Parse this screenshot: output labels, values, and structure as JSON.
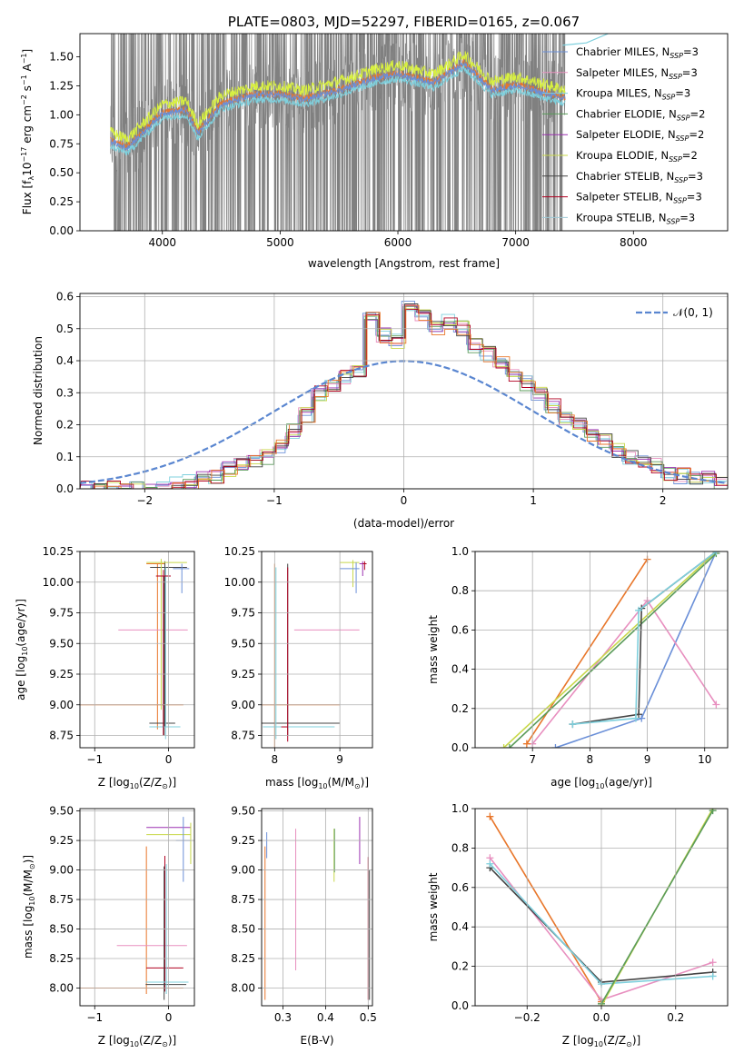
{
  "colors": {
    "Chabrier MILES": "#6a8fd8",
    "Salpeter MILES": "#e88fbf",
    "Kroupa MILES": "#7fd0dd",
    "Chabrier ELODIE": "#5a9b5a",
    "Salpeter ELODIE": "#9b30b0",
    "Kroupa ELODIE": "#c8d84a",
    "Chabrier STELIB": "#444444",
    "Salpeter STELIB": "#b00020",
    "Kroupa STELIB": "#9ec9d6",
    "data": "#808080",
    "models_orange": "#e8762a",
    "models_yellow": "#d8f040",
    "normal": "#5a86d0"
  },
  "chart_data": [
    {
      "id": "spectrum",
      "type": "line",
      "title": "PLATE=0803, MJD=52297, FIBERID=0165, z=0.067",
      "xlabel": "wavelength [Angstrom, rest frame]",
      "ylabel_main": "Flux [f",
      "ylabel_sub": "λ",
      "ylabel_rest": "10",
      "ylabel_sup": "−17",
      "ylabel_end": " erg cm",
      "ylabel_sup2": "−2",
      "ylabel_mid": " s",
      "ylabel_sup3": "−1",
      "ylabel_tail": " A",
      "ylabel_sup4": "−1",
      "ylabel_close": "]",
      "xlim": [
        3300,
        8800
      ],
      "ylim": [
        0,
        1.7
      ],
      "xticks": [
        4000,
        5000,
        6000,
        7000,
        8000
      ],
      "yticks": [
        0.0,
        0.25,
        0.5,
        0.75,
        1.0,
        1.25,
        1.5
      ],
      "ytick_labels": [
        "0.00",
        "0.25",
        "0.50",
        "0.75",
        "1.00",
        "1.25",
        "1.50"
      ],
      "data_range": [
        3560,
        7420
      ],
      "model_trend": [
        [
          3560,
          0.78
        ],
        [
          3700,
          0.72
        ],
        [
          3900,
          0.92
        ],
        [
          4000,
          1.02
        ],
        [
          4200,
          1.05
        ],
        [
          4300,
          0.85
        ],
        [
          4500,
          1.1
        ],
        [
          4800,
          1.18
        ],
        [
          5000,
          1.18
        ],
        [
          5200,
          1.14
        ],
        [
          5500,
          1.22
        ],
        [
          5800,
          1.32
        ],
        [
          6000,
          1.36
        ],
        [
          6300,
          1.28
        ],
        [
          6560,
          1.45
        ],
        [
          6800,
          1.22
        ],
        [
          7000,
          1.26
        ],
        [
          7400,
          1.15
        ]
      ],
      "legend": [
        {
          "name": "Chabrier MILES",
          "nssp": "3"
        },
        {
          "name": "Salpeter MILES",
          "nssp": "3"
        },
        {
          "name": "Kroupa MILES",
          "nssp": "3"
        },
        {
          "name": "Chabrier ELODIE",
          "nssp": "2"
        },
        {
          "name": "Salpeter ELODIE",
          "nssp": "2"
        },
        {
          "name": "Kroupa ELODIE",
          "nssp": "2"
        },
        {
          "name": "Chabrier STELIB",
          "nssp": "3"
        },
        {
          "name": "Salpeter STELIB",
          "nssp": "3"
        },
        {
          "name": "Kroupa STELIB",
          "nssp": "3"
        }
      ],
      "legend_suffix_pre": ", N",
      "legend_suffix_sub": "SSP",
      "legend_suffix_eq": "=",
      "legend_placement": "right"
    },
    {
      "id": "residuals",
      "type": "line",
      "xlabel": "(data-model)/error",
      "ylabel": "Normed distribution",
      "xlim": [
        -2.5,
        2.5
      ],
      "ylim": [
        0,
        0.61
      ],
      "xticks": [
        -2,
        -1,
        0,
        1,
        2
      ],
      "xtick_labels": [
        "−2",
        "−1",
        "0",
        "1",
        "2"
      ],
      "yticks": [
        0.0,
        0.1,
        0.2,
        0.3,
        0.4,
        0.5,
        0.6
      ],
      "ytick_labels": [
        "0.0",
        "0.1",
        "0.2",
        "0.3",
        "0.4",
        "0.5",
        "0.6"
      ],
      "grid": true,
      "legend_label": "𝒩(0, 1)",
      "legend_placement": "top-right",
      "hist_bins_start": -2.5,
      "hist_bin_width": 0.1,
      "hist_base": [
        0,
        0,
        0,
        0,
        0,
        0,
        0.01,
        0.02,
        0.02,
        0.03,
        0.04,
        0.06,
        0.07,
        0.08,
        0.1,
        0.13,
        0.18,
        0.23,
        0.3,
        0.32,
        0.35,
        0.36,
        0.54,
        0.48,
        0.46,
        0.57,
        0.54,
        0.5,
        0.52,
        0.5,
        0.45,
        0.42,
        0.39,
        0.35,
        0.33,
        0.3,
        0.26,
        0.22,
        0.2,
        0.17,
        0.15,
        0.12,
        0.1,
        0.08,
        0.07,
        0.05,
        0.04,
        0.03,
        0.03,
        0.02
      ]
    },
    {
      "id": "age-vs-Z",
      "type": "scatter",
      "xlabel_main": "Z [log",
      "xlabel_sub": "10",
      "xlabel_end": "(Z/Z",
      "xlabel_sub2": "⊙",
      "xlabel_close": ")]",
      "ylabel_main": "age  [log",
      "ylabel_sub": "10",
      "ylabel_end": "(age/yr)]",
      "xlim": [
        -1.2,
        0.35
      ],
      "ylim": [
        8.65,
        10.25
      ],
      "xticks": [
        -1,
        0
      ],
      "xtick_labels": [
        "−1",
        "0"
      ],
      "yticks": [
        8.75,
        9.0,
        9.25,
        9.5,
        9.75,
        10.0,
        10.25
      ],
      "ytick_labels": [
        "8.75",
        "9.00",
        "9.25",
        "9.50",
        "9.75",
        "10.00",
        "10.25"
      ]
    },
    {
      "id": "age-vs-mass",
      "type": "scatter",
      "xlabel_main": "mass [log",
      "xlabel_sub": "10",
      "xlabel_end": "(M/M",
      "xlabel_sub2": "⊙",
      "xlabel_close": ")]",
      "xlim": [
        7.8,
        9.5
      ],
      "ylim": [
        8.65,
        10.25
      ],
      "xticks": [
        8,
        9
      ],
      "xtick_labels": [
        "8",
        "9"
      ],
      "yticks": [
        8.75,
        9.0,
        9.25,
        9.5,
        9.75,
        10.0,
        10.25
      ],
      "ytick_labels": [
        "8.75",
        "9.00",
        "9.25",
        "9.50",
        "9.75",
        "10.00",
        "10.25"
      ]
    },
    {
      "id": "weight-vs-age",
      "type": "line",
      "xlabel_main": "age  [log",
      "xlabel_sub": "10",
      "xlabel_end": "(age/yr)]",
      "ylabel": "mass weight",
      "xlim": [
        6.0,
        10.4
      ],
      "ylim": [
        0,
        1.0
      ],
      "xticks": [
        7,
        8,
        9,
        10
      ],
      "xtick_labels": [
        "7",
        "8",
        "9",
        "10"
      ],
      "yticks": [
        0.0,
        0.2,
        0.4,
        0.6,
        0.8,
        1.0
      ],
      "ytick_labels": [
        "0.0",
        "0.2",
        "0.4",
        "0.6",
        "0.8",
        "1.0"
      ],
      "grid": true,
      "series": [
        {
          "color": "Chabrier MILES",
          "x": [
            7.4,
            8.9,
            10.2
          ],
          "y": [
            0.0,
            0.15,
            1.0
          ]
        },
        {
          "color": "Salpeter MILES",
          "x": [
            7.0,
            9.0,
            10.2
          ],
          "y": [
            0.02,
            0.75,
            0.22
          ]
        },
        {
          "color": "models_orange",
          "x": [
            6.9,
            9.0
          ],
          "y": [
            0.02,
            0.96
          ]
        },
        {
          "color": "Kroupa ELODIE",
          "x": [
            6.5,
            10.2
          ],
          "y": [
            0.0,
            1.0
          ]
        },
        {
          "color": "Chabrier ELODIE",
          "x": [
            6.6,
            10.2
          ],
          "y": [
            0.0,
            0.99
          ]
        },
        {
          "color": "Chabrier STELIB",
          "x": [
            7.7,
            8.85,
            8.9,
            10.2
          ],
          "y": [
            0.12,
            0.17,
            0.71,
            1.0
          ]
        },
        {
          "color": "Kroupa MILES",
          "x": [
            7.7,
            8.8,
            8.85,
            10.2
          ],
          "y": [
            0.12,
            0.15,
            0.7,
            1.0
          ]
        }
      ]
    },
    {
      "id": "mass-vs-Z",
      "type": "scatter",
      "xlabel_main": "Z [log",
      "xlabel_sub": "10",
      "xlabel_end": "(Z/Z",
      "xlabel_sub2": "⊙",
      "xlabel_close": ")]",
      "ylabel_main": "mass [log",
      "ylabel_sub": "10",
      "ylabel_end": "(M/M",
      "ylabel_sub2": "⊙",
      "ylabel_close": ")]",
      "xlim": [
        -1.2,
        0.35
      ],
      "ylim": [
        7.85,
        9.52
      ],
      "xticks": [
        -1,
        0
      ],
      "xtick_labels": [
        "−1",
        "0"
      ],
      "yticks": [
        8.0,
        8.25,
        8.5,
        8.75,
        9.0,
        9.25,
        9.5
      ],
      "ytick_labels": [
        "8.00",
        "8.25",
        "8.50",
        "8.75",
        "9.00",
        "9.25",
        "9.50"
      ]
    },
    {
      "id": "mass-vs-EBV",
      "type": "scatter",
      "xlabel": "E(B-V)",
      "xlim": [
        0.25,
        0.51
      ],
      "ylim": [
        7.85,
        9.52
      ],
      "xticks": [
        0.3,
        0.4,
        0.5
      ],
      "xtick_labels": [
        "0.3",
        "0.4",
        "0.5"
      ],
      "yticks": [
        8.0,
        8.25,
        8.5,
        8.75,
        9.0,
        9.25,
        9.5
      ],
      "ytick_labels": [
        "8.00",
        "8.25",
        "8.50",
        "8.75",
        "9.00",
        "9.25",
        "9.50"
      ]
    },
    {
      "id": "weight-vs-Z",
      "type": "line",
      "xlabel_main": "Z [log",
      "xlabel_sub": "10",
      "xlabel_end": "(Z/Z",
      "xlabel_sub2": "⊙",
      "xlabel_close": ")]",
      "ylabel": "mass weight",
      "xlim": [
        -0.34,
        0.34
      ],
      "ylim": [
        0,
        1.0
      ],
      "xticks": [
        -0.2,
        0.0,
        0.2
      ],
      "xtick_labels": [
        "−0.2",
        "0.0",
        "0.2"
      ],
      "yticks": [
        0.0,
        0.2,
        0.4,
        0.6,
        0.8,
        1.0
      ],
      "ytick_labels": [
        "0.0",
        "0.2",
        "0.4",
        "0.6",
        "0.8",
        "1.0"
      ],
      "grid": true,
      "series": [
        {
          "color": "models_orange",
          "x": [
            -0.3,
            0.0
          ],
          "y": [
            0.96,
            0.02
          ]
        },
        {
          "color": "Salpeter MILES",
          "x": [
            -0.3,
            0.0,
            0.3
          ],
          "y": [
            0.75,
            0.03,
            0.22
          ]
        },
        {
          "color": "Chabrier STELIB",
          "x": [
            -0.3,
            0.0,
            0.3
          ],
          "y": [
            0.7,
            0.12,
            0.17
          ]
        },
        {
          "color": "Kroupa MILES",
          "x": [
            -0.3,
            0.0,
            0.3
          ],
          "y": [
            0.72,
            0.11,
            0.15
          ]
        },
        {
          "color": "Kroupa ELODIE",
          "x": [
            0.0,
            0.3
          ],
          "y": [
            0.0,
            1.0
          ]
        },
        {
          "color": "Chabrier ELODIE",
          "x": [
            0.0,
            0.3
          ],
          "y": [
            0.01,
            0.99
          ]
        }
      ]
    }
  ]
}
